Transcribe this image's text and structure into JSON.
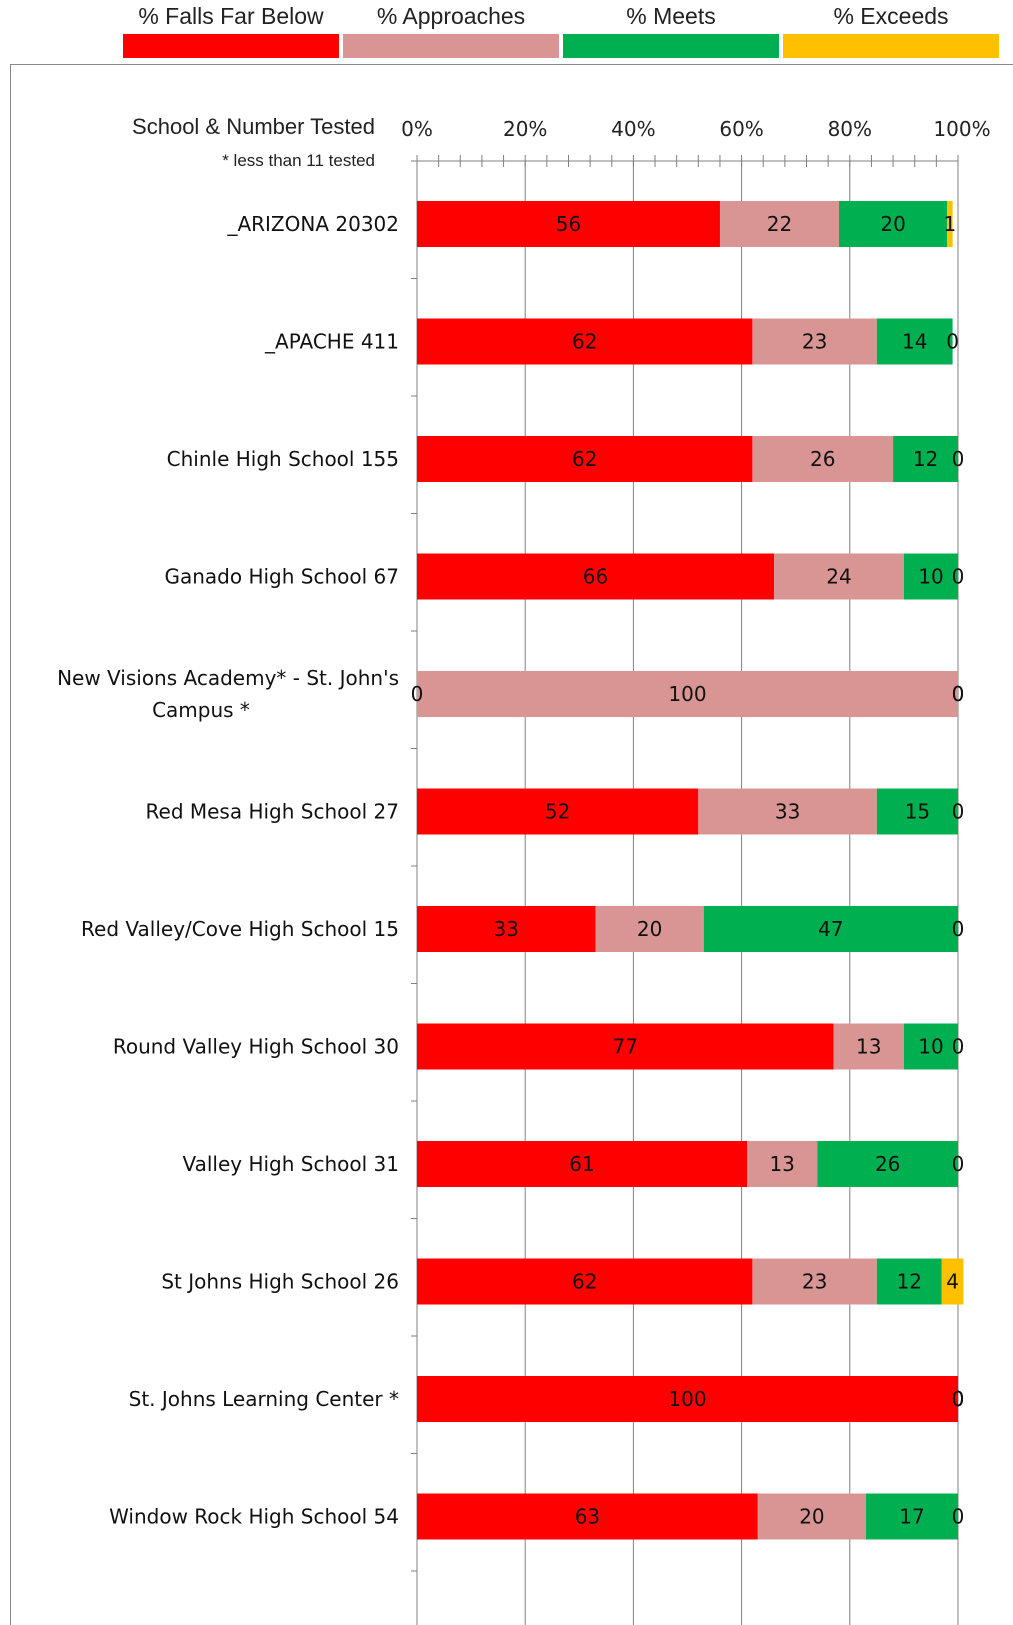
{
  "legend": {
    "items": [
      {
        "label": "% Falls Far Below",
        "color": "#ff0000"
      },
      {
        "label": "% Approaches",
        "color": "#d99594"
      },
      {
        "label": "% Meets",
        "color": "#00b050"
      },
      {
        "label": "% Exceeds",
        "color": "#ffc000"
      }
    ]
  },
  "header": {
    "title": "School & Number Tested",
    "note": "* less than 11 tested"
  },
  "chart_data": {
    "type": "bar",
    "orientation": "horizontal",
    "stacked": true,
    "xlim": [
      0,
      100
    ],
    "x_tick_labels": [
      "0%",
      "20%",
      "40%",
      "60%",
      "80%",
      "100%"
    ],
    "grid": true,
    "legend_position": "top",
    "categories": [
      [
        "_ARIZONA  20302"
      ],
      [
        "_APACHE  411"
      ],
      [
        "Chinle High School  155"
      ],
      [
        "Ganado High School  67"
      ],
      [
        "New Visions Academy* - St. John's",
        "Campus  *"
      ],
      [
        "Red Mesa High School  27"
      ],
      [
        "Red Valley/Cove High School  15"
      ],
      [
        "Round Valley High School  30"
      ],
      [
        "Valley High School  31"
      ],
      [
        "St Johns High School  26"
      ],
      [
        "St. Johns Learning Center  *"
      ],
      [
        "Window Rock High School  54"
      ]
    ],
    "series": [
      {
        "name": "% Falls Far Below",
        "color": "#ff0000",
        "values": [
          56,
          62,
          62,
          66,
          0,
          52,
          33,
          77,
          61,
          62,
          100,
          63
        ]
      },
      {
        "name": "% Approaches",
        "color": "#d99594",
        "values": [
          22,
          23,
          26,
          24,
          100,
          33,
          20,
          13,
          13,
          23,
          0,
          20
        ]
      },
      {
        "name": "% Meets",
        "color": "#00b050",
        "values": [
          20,
          14,
          12,
          10,
          0,
          15,
          47,
          10,
          26,
          12,
          0,
          17
        ]
      },
      {
        "name": "% Exceeds",
        "color": "#ffc000",
        "values": [
          1,
          0,
          0,
          0,
          0,
          0,
          0,
          0,
          0,
          4,
          0,
          0
        ]
      }
    ]
  }
}
